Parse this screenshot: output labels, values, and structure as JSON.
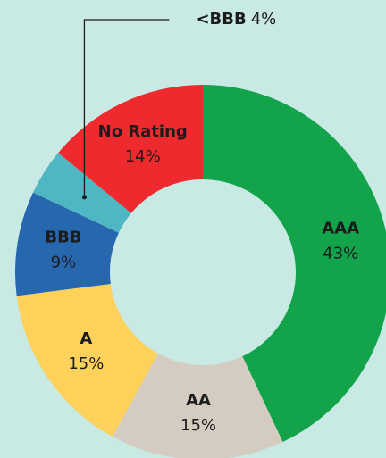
{
  "chart_data": {
    "type": "donut",
    "categories": [
      "AAA",
      "AA",
      "A",
      "BBB",
      "<BBB",
      "No Rating"
    ],
    "values": [
      43,
      15,
      15,
      9,
      4,
      14
    ],
    "value_labels": [
      "43%",
      "15%",
      "15%",
      "9%",
      "4%",
      "14%"
    ],
    "colors": [
      "#12a34b",
      "#d4ccc0",
      "#fed15b",
      "#2667ad",
      "#4fb7c3",
      "#ee2a2f"
    ]
  }
}
